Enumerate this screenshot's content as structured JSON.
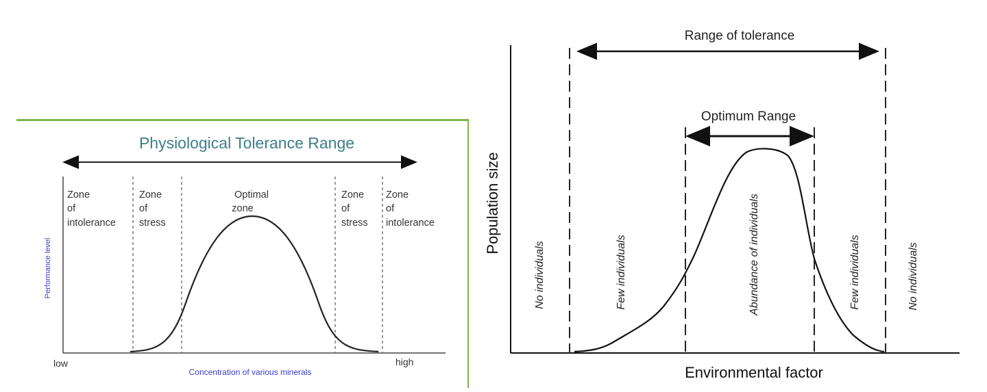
{
  "left_diagram": {
    "title": "Physiological Tolerance Range",
    "y_label": "Performance level",
    "x_label": "Concentration of various minerals",
    "x_low": "low",
    "x_high": "high",
    "zones": [
      {
        "line1": "Zone",
        "line2": "of intolerance"
      },
      {
        "line1": "Zone",
        "line2": "of",
        "line3": "stress"
      },
      {
        "line1": "Optimal",
        "line2": "zone"
      },
      {
        "line1": "Zone",
        "line2": "of",
        "line3": "stress"
      },
      {
        "line1": "Zone",
        "line2": "of",
        "line3": "intolerance"
      }
    ],
    "accent_color": "#7ab648"
  },
  "right_diagram": {
    "range_label": "Range of tolerance",
    "optimum_label": "Optimum Range",
    "y_label": "Population size",
    "x_label": "Environmental factor",
    "regions": [
      "No individuals",
      "Few individuals",
      "Abundance of individuals",
      "Few individuals",
      "No individuals"
    ]
  }
}
